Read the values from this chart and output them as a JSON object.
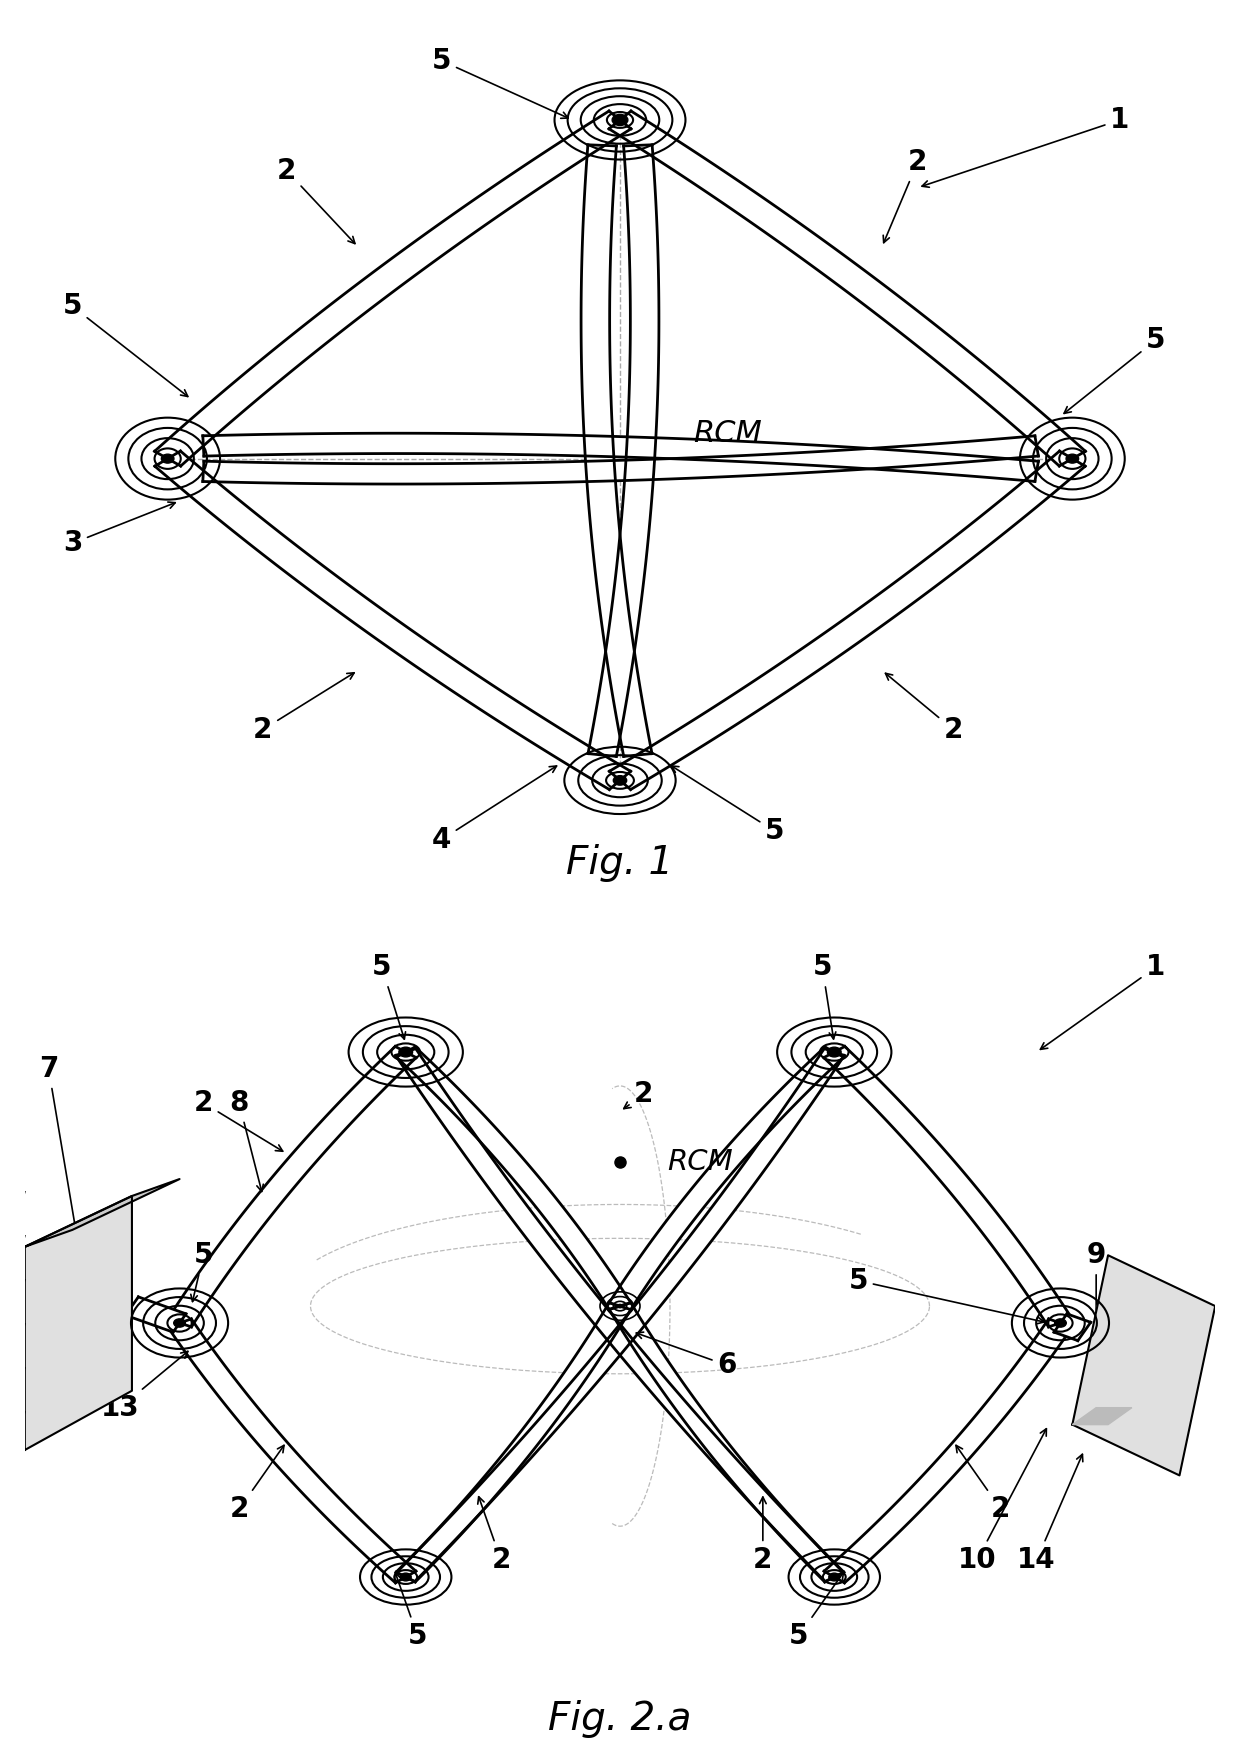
{
  "fig1_caption": "Fig. 1",
  "fig2_caption": "Fig. 2.a",
  "background_color": "#ffffff",
  "line_color": "#000000",
  "label_fontsize": 20,
  "caption_fontsize": 28,
  "annotation_lw": 1.2,
  "link_lw": 2.0,
  "joint_lw": 1.5
}
